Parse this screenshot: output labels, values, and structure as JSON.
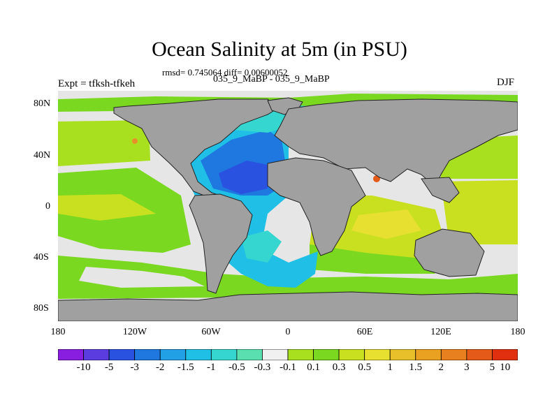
{
  "title": "Ocean Salinity at 5m (in PSU)",
  "stats": "rmsd= 0.745064 diff= 0.00600052",
  "experiments": "035_9_MaBP - 035_9_MaBP",
  "expt_label": "Expt = tfksh-tfkeh",
  "season": "DJF",
  "axes": {
    "y_ticks": [
      "80N",
      "40N",
      "0",
      "40S",
      "80S"
    ],
    "x_ticks": [
      "180",
      "120W",
      "60W",
      "0",
      "60E",
      "120E",
      "180"
    ]
  },
  "colorbar": {
    "labels": [
      "-10",
      "-5",
      "-3",
      "-2",
      "-1.5",
      "-1",
      "-0.5",
      "-0.3",
      "-0.1",
      "0.1",
      "0.3",
      "0.5",
      "1",
      "1.5",
      "2",
      "3",
      "5",
      "10"
    ],
    "colors": [
      "#8a1ee0",
      "#5a3ce0",
      "#2a52e0",
      "#1e78e0",
      "#22a0e6",
      "#20c0e6",
      "#36d6d0",
      "#5ae0b0",
      "#f0f0f0",
      "#a8e020",
      "#7ad820",
      "#c8e020",
      "#e8e030",
      "#e8c02a",
      "#eaa020",
      "#e88020",
      "#e45a18",
      "#e03010"
    ]
  },
  "colors": {
    "land": "#a0a0a0",
    "neutral": "#e6e6e6",
    "green": "#7ad820",
    "light_green": "#a8e020",
    "yellow_green": "#c8e020",
    "yellow": "#e8e030",
    "orange": "#e89028",
    "red_orange": "#e45a18",
    "cyan": "#20c0e6",
    "light_cyan": "#36d6d0",
    "teal": "#5ae0b0",
    "blue": "#1e78e0",
    "deep_blue": "#2a52e0"
  }
}
